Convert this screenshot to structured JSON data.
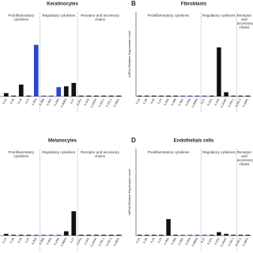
{
  "chart_data": [
    {
      "type": "bar",
      "title": "Keratinocytes",
      "sections": [
        "Proinflammatory cytokines",
        "Regulatory cytokines",
        "Receptor and accessory chains"
      ],
      "categories": [
        "IL1A",
        "IL1B",
        "IL18",
        "IL33",
        "IL36A",
        "IL36B",
        "IL36G",
        "IL1RN",
        "IL36RN",
        "IL37",
        "IL1R1",
        "IL1R2",
        "IL1RAP",
        "IL1RL1",
        "IL1RL2",
        "IL18R1"
      ],
      "values": [
        4,
        1,
        14,
        1,
        61,
        1,
        1,
        11,
        12,
        16,
        1,
        1,
        1,
        1,
        1,
        1
      ],
      "colors": [
        "#111",
        "#111",
        "#111",
        "#111",
        "#2b47c8",
        "#2b47c8",
        "#2b47c8",
        "#2b47c8",
        "#111",
        "#111",
        "#111",
        "#111",
        "#111",
        "#111",
        "#111",
        "#111"
      ],
      "ylim": [
        0,
        100
      ]
    },
    {
      "type": "bar",
      "title": "Fibroblasts",
      "letter": "B",
      "ylabel": "mRNA Relative Expression Level",
      "sections": [
        "Proinflammatory cytokines",
        "Regulatory cytokines",
        "Receptor and accessory chains"
      ],
      "categories": [
        "IL1A",
        "IL1B",
        "IL18",
        "IL33",
        "IL36A",
        "IL36B",
        "IL36G",
        "IL1RN",
        "IL36RN",
        "IL37",
        "IL1R1",
        "IL1R2",
        "IL1RAP",
        "IL1RL1",
        "IL1RL2",
        "IL18R1"
      ],
      "values": [
        1,
        1,
        1,
        1,
        1,
        1,
        1,
        1,
        1,
        1,
        1,
        58,
        5,
        1,
        1,
        1
      ],
      "colors": [
        "#111",
        "#111",
        "#111",
        "#111",
        "#111",
        "#111",
        "#2b47c8",
        "#2b47c8",
        "#2b47c8",
        "#2b47c8",
        "#111",
        "#111",
        "#111",
        "#111",
        "#111",
        "#111"
      ],
      "ylim": [
        0,
        100
      ]
    },
    {
      "type": "bar",
      "title": "Melanocytes",
      "sections": [
        "Proinflammatory cytokines",
        "Regulatory cytokines",
        "Receptor and accessory chains"
      ],
      "categories": [
        "IL1A",
        "IL1B",
        "IL18",
        "IL33",
        "IL36A",
        "IL36B",
        "IL36G",
        "IL1RN",
        "IL36RN",
        "IL37",
        "IL1R1",
        "IL1R2",
        "IL1RAP",
        "IL1RL1",
        "IL1RL2",
        "IL18R1"
      ],
      "values": [
        2,
        1,
        1,
        1,
        1,
        1,
        1,
        1,
        5,
        28,
        1,
        1,
        1,
        1,
        1,
        1
      ],
      "colors": [
        "#111",
        "#111",
        "#111",
        "#111",
        "#2b47c8",
        "#2b47c8",
        "#2b47c8",
        "#2b47c8",
        "#111",
        "#111",
        "#111",
        "#111",
        "#111",
        "#111",
        "#111",
        "#111"
      ],
      "ylim": [
        0,
        100
      ]
    },
    {
      "type": "bar",
      "title": "Endothelials cells",
      "letter": "D",
      "ylabel": "mRNA Relative Expression Level",
      "sections": [
        "Proinflammatory cytokines",
        "Regulatory cytokines",
        "Receptor and accessory chains"
      ],
      "categories": [
        "IL1A",
        "IL1B",
        "IL18",
        "IL33",
        "IL36A",
        "IL36B",
        "IL36G",
        "IL1RN",
        "IL36RN",
        "IL37",
        "IL1R1",
        "IL1R2",
        "IL1RAP",
        "IL1RL1",
        "IL1RL2",
        "IL18R1"
      ],
      "values": [
        1,
        1,
        1,
        1,
        19,
        1,
        1,
        1,
        1,
        1,
        1,
        4,
        2,
        1,
        1,
        1
      ],
      "colors": [
        "#111",
        "#111",
        "#111",
        "#111",
        "#111",
        "#111",
        "#2b47c8",
        "#2b47c8",
        "#2b47c8",
        "#2b47c8",
        "#111",
        "#111",
        "#111",
        "#111",
        "#111",
        "#111"
      ],
      "ylim": [
        0,
        100
      ]
    }
  ]
}
